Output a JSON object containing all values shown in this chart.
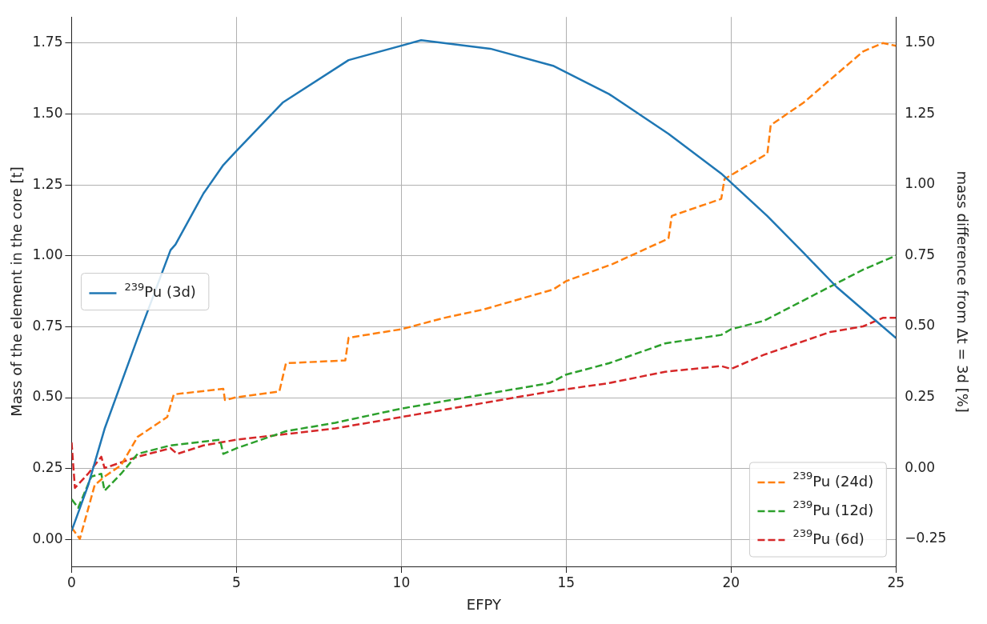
{
  "chart_data": {
    "type": "line",
    "xlabel": "EFPY",
    "ylabel": "Mass of the element in the core [t]",
    "y2label": "mass difference from Δt = 3d [%]",
    "xlim": [
      0,
      25
    ],
    "xticks": [
      0,
      5,
      10,
      15,
      20,
      25
    ],
    "ylim": [
      -0.095,
      1.842
    ],
    "yticks": [
      {
        "value": 0,
        "label": "0.00"
      },
      {
        "value": 0.25,
        "label": "0.25"
      },
      {
        "value": 0.5,
        "label": "0.50"
      },
      {
        "value": 0.75,
        "label": "0.75"
      },
      {
        "value": 1,
        "label": "1.00"
      },
      {
        "value": 1.25,
        "label": "1.25"
      },
      {
        "value": 1.5,
        "label": "1.50"
      },
      {
        "value": 1.75,
        "label": "1.75"
      }
    ],
    "y2lim": [
      -0.347,
      1.592
    ],
    "y2ticks": [
      {
        "value": -0.25,
        "label": "−0.25"
      },
      {
        "value": 0,
        "label": "0.00"
      },
      {
        "value": 0.25,
        "label": "0.25"
      },
      {
        "value": 0.5,
        "label": "0.50"
      },
      {
        "value": 0.75,
        "label": "0.75"
      },
      {
        "value": 1,
        "label": "1.00"
      },
      {
        "value": 1.25,
        "label": "1.25"
      },
      {
        "value": 1.5,
        "label": "1.50"
      }
    ],
    "grid": true,
    "legend": "bottom right",
    "marker": "none",
    "series": [
      {
        "name": "$^{239}$Pu (3d)",
        "color": "#1f77b4",
        "line_style": "solid",
        "x": [
          0,
          0.5,
          1,
          2,
          3,
          3.15,
          4,
          4.6,
          5,
          6.4,
          8.4,
          10.6,
          12.7,
          14.6,
          16.3,
          18.1,
          19.7,
          21.1,
          22.2,
          23.2,
          24.2,
          25
        ],
        "values": [
          0.03,
          0.19,
          0.39,
          0.71,
          1.02,
          1.04,
          1.22,
          1.32,
          1.37,
          1.54,
          1.69,
          1.76,
          1.73,
          1.67,
          1.57,
          1.43,
          1.29,
          1.14,
          1.01,
          0.89,
          0.79,
          0.71
        ]
      },
      {
        "name": "$^{239}$Pu (24d)",
        "color": "#ff7f0e",
        "line_style": "dashed",
        "axis": "y2",
        "x": [
          0,
          0.25,
          0.7,
          1,
          1.5,
          1.8,
          2,
          2.9,
          3.1,
          4.6,
          4.65,
          5,
          6.3,
          6.5,
          8.3,
          8.4,
          10,
          11.3,
          12.5,
          14.6,
          15,
          16.4,
          18.1,
          18.2,
          19.7,
          19.8,
          21.1,
          21.2,
          22.2,
          23.3,
          24,
          24.6,
          25
        ],
        "values": [
          -0.21,
          -0.25,
          -0.06,
          -0.03,
          0.01,
          0.07,
          0.11,
          0.18,
          0.26,
          0.28,
          0.24,
          0.25,
          0.27,
          0.37,
          0.38,
          0.46,
          0.49,
          0.53,
          0.56,
          0.63,
          0.66,
          0.72,
          0.81,
          0.89,
          0.95,
          1.02,
          1.11,
          1.21,
          1.29,
          1.4,
          1.47,
          1.5,
          1.49
        ]
      },
      {
        "name": "$^{239}$Pu (12d)",
        "color": "#2ca02c",
        "line_style": "dashed",
        "axis": "y2",
        "x": [
          0,
          0.2,
          0.6,
          0.9,
          1,
          1.5,
          2,
          3,
          4.5,
          4.6,
          5,
          6.5,
          8,
          10,
          12,
          14.5,
          15,
          16.3,
          18,
          19.7,
          20,
          21,
          22,
          23,
          24,
          25
        ],
        "values": [
          -0.11,
          -0.14,
          -0.03,
          -0.02,
          -0.08,
          -0.02,
          0.05,
          0.08,
          0.1,
          0.05,
          0.07,
          0.13,
          0.16,
          0.21,
          0.25,
          0.3,
          0.33,
          0.37,
          0.44,
          0.47,
          0.49,
          0.52,
          0.58,
          0.64,
          0.7,
          0.75
        ]
      },
      {
        "name": "$^{239}$Pu (6d)",
        "color": "#d62728",
        "line_style": "dashed",
        "axis": "y2",
        "x": [
          0,
          0.1,
          0.5,
          0.9,
          1,
          2,
          3,
          3.2,
          4,
          5,
          6.5,
          8,
          10,
          12,
          14.5,
          16.3,
          18,
          19.7,
          20,
          21,
          22,
          23,
          24,
          24.6,
          25
        ],
        "values": [
          0.09,
          -0.07,
          -0.02,
          0.04,
          0,
          0.04,
          0.07,
          0.05,
          0.08,
          0.1,
          0.12,
          0.14,
          0.18,
          0.22,
          0.27,
          0.3,
          0.34,
          0.36,
          0.35,
          0.4,
          0.44,
          0.48,
          0.5,
          0.53,
          0.53
        ]
      }
    ]
  }
}
